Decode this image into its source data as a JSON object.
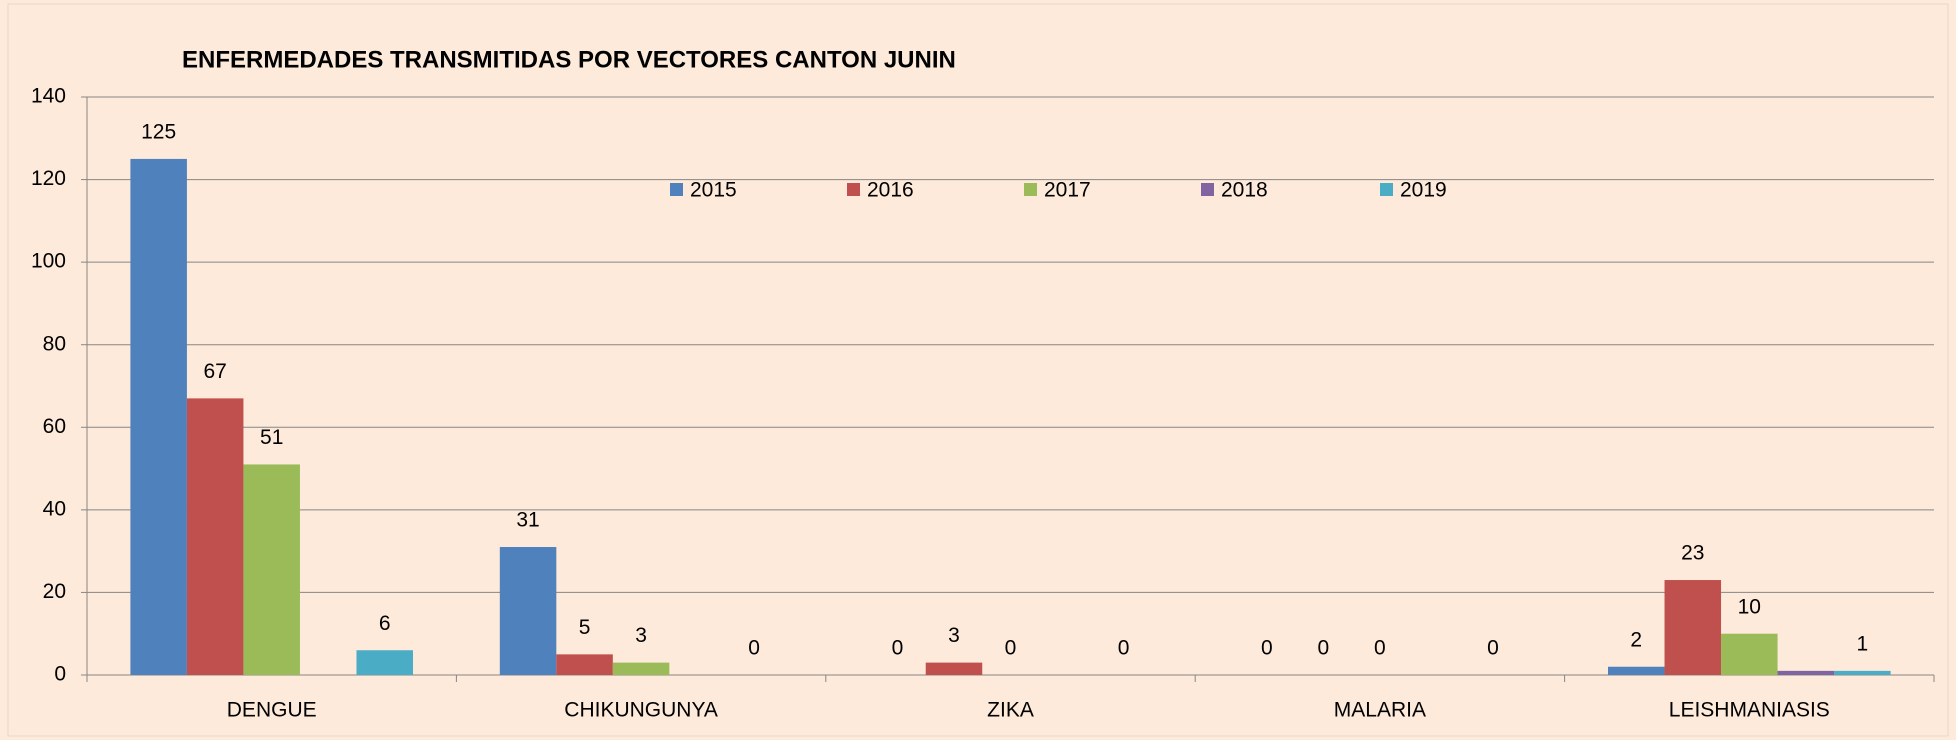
{
  "chart_data": {
    "type": "bar",
    "title": "ENFERMEDADES TRANSMITIDAS POR VECTORES CANTON JUNIN",
    "categories": [
      "DENGUE",
      "CHIKUNGUNYA",
      "ZIKA",
      "MALARIA",
      "LEISHMANIASIS"
    ],
    "series": [
      {
        "name": "2015",
        "color": "#4f81bd",
        "values": [
          125,
          31,
          0,
          0,
          2
        ]
      },
      {
        "name": "2016",
        "color": "#c0504d",
        "values": [
          67,
          5,
          3,
          0,
          23
        ]
      },
      {
        "name": "2017",
        "color": "#9bbb59",
        "values": [
          51,
          3,
          0,
          0,
          10
        ]
      },
      {
        "name": "2018",
        "color": "#8064a2",
        "values": [
          null,
          null,
          null,
          null,
          1
        ],
        "value_labels": [
          null,
          null,
          null,
          null,
          null
        ]
      },
      {
        "name": "2019",
        "color": "#4bacc6",
        "values": [
          6,
          0,
          0,
          0,
          1
        ]
      }
    ],
    "ylim": [
      0,
      140
    ],
    "yticks": [
      0,
      20,
      40,
      60,
      80,
      100,
      120,
      140
    ],
    "grid": true,
    "legend": "top"
  }
}
